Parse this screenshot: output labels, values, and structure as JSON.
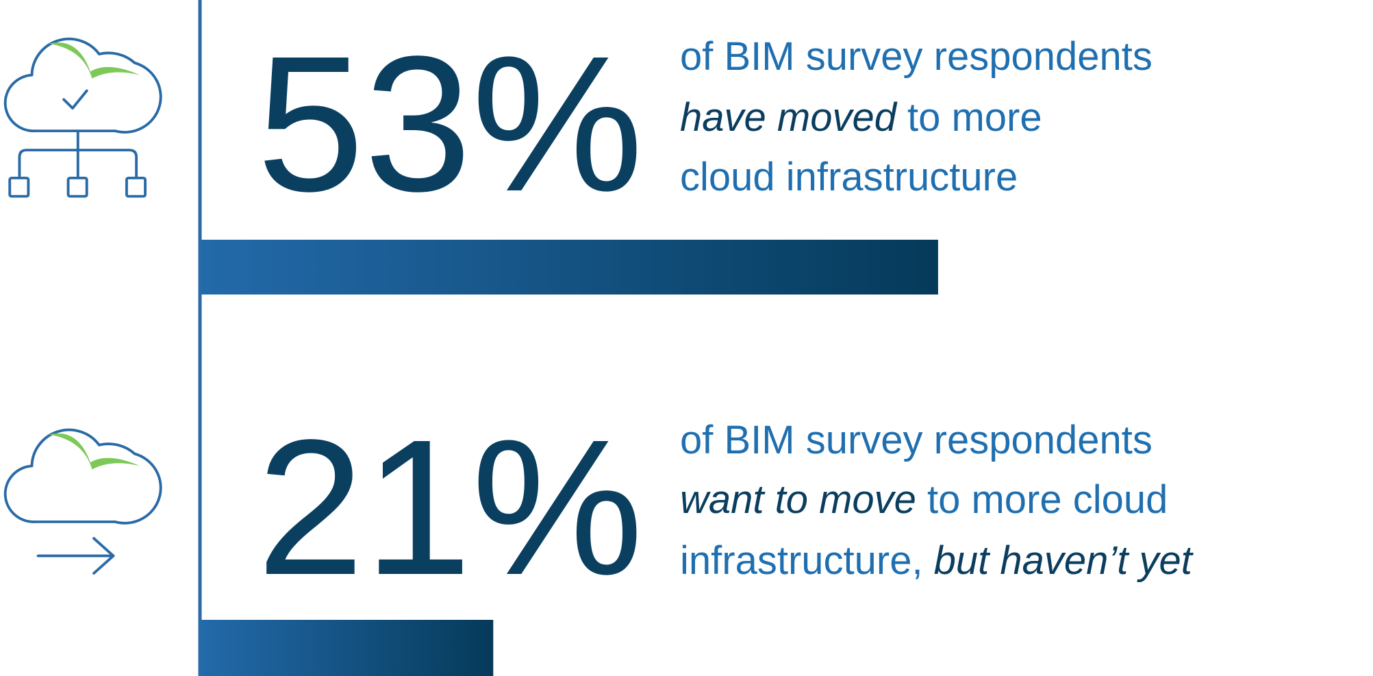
{
  "chart_data": {
    "type": "bar",
    "orientation": "horizontal",
    "values": [
      53,
      21
    ],
    "value_labels": [
      "53%",
      "21%"
    ],
    "colors": [
      "#236aaa",
      "#053a5a"
    ],
    "descriptions": [
      [
        [
          {
            "text": "of BIM survey respondents",
            "italic": false
          }
        ],
        [
          {
            "text": "have moved",
            "italic": true
          },
          {
            "text": "to more",
            "italic": false
          }
        ],
        [
          {
            "text": "cloud infrastructure",
            "italic": false
          }
        ]
      ],
      [
        [
          {
            "text": "of BIM survey respondents",
            "italic": false
          }
        ],
        [
          {
            "text": "want to move",
            "italic": true
          },
          {
            "text": "to more cloud",
            "italic": false
          }
        ],
        [
          {
            "text": "infrastructure,",
            "italic": false
          },
          {
            "text": "but haven’t yet",
            "italic": true
          }
        ]
      ]
    ]
  }
}
